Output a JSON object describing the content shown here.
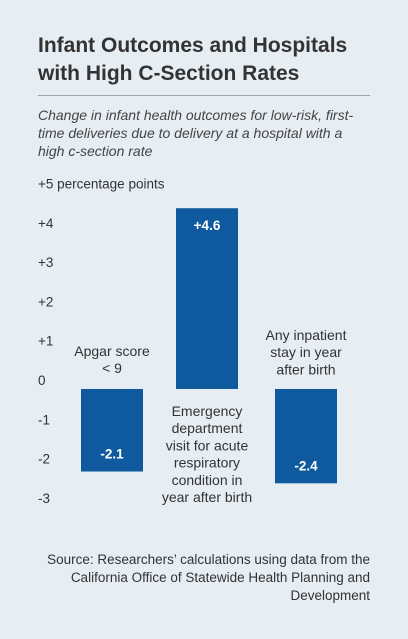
{
  "title": "Infant Outcomes and Hospitals with High C-Section Rates",
  "subtitle": "Change in infant health outcomes for low-risk, first-time deliveries due to delivery at a hospital with a high c-section rate",
  "source": "Source: Researchers’ calculations using data from the California Office of Statewide Health Planning and Development",
  "colors": {
    "bar": "#0f5a9f",
    "background": "#e6edf3",
    "text": "#333333"
  },
  "chart_data": {
    "type": "bar",
    "title": "Infant Outcomes and Hospitals with High C-Section Rates",
    "categories": [
      "Apgar score < 9",
      "Emergency department visit for acute respiratory condition in year after birth",
      "Any inpatient stay in year after birth"
    ],
    "category_lines": [
      [
        "Apgar score",
        "< 9"
      ],
      [
        "Emergency",
        "department",
        "visit for acute",
        "respiratory",
        "condition in",
        "year after birth"
      ],
      [
        "Any inpatient",
        "stay in year",
        "after birth"
      ]
    ],
    "values": [
      -2.1,
      4.6,
      -2.4
    ],
    "data_labels": [
      "-2.1",
      "+4.6",
      "-2.4"
    ],
    "ylabel": "percentage points",
    "ylim": [
      -3,
      5
    ],
    "yticks": [
      5,
      4,
      3,
      2,
      1,
      0,
      -1,
      -2,
      -3
    ],
    "ytick_labels": [
      "+5 percentage points",
      "+4",
      "+3",
      "+2",
      "+1",
      "0",
      "-1",
      "-2",
      "-3"
    ],
    "grid": false,
    "legend": "none"
  }
}
